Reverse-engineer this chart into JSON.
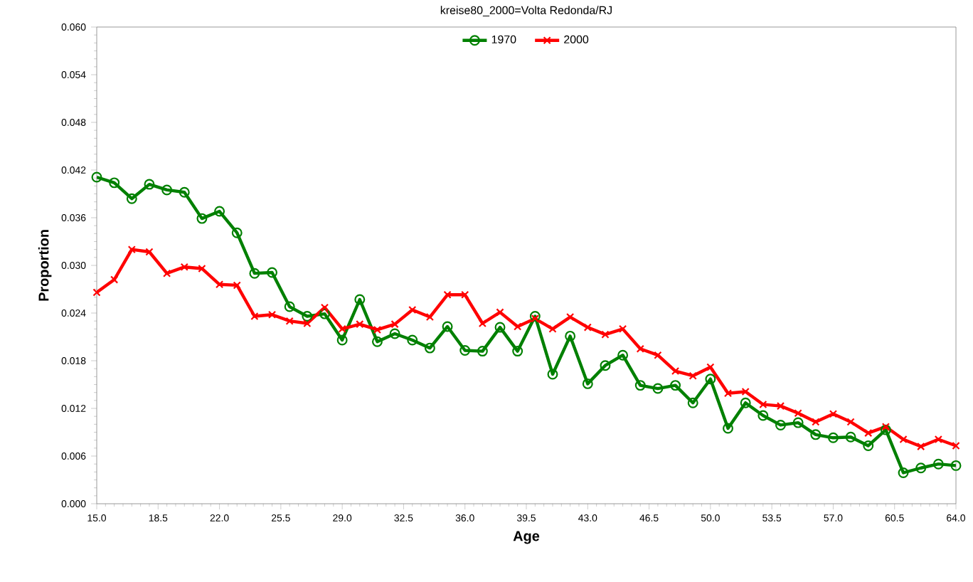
{
  "chart_data": {
    "type": "line",
    "title": "kreise80_2000=Volta Redonda/RJ",
    "xlabel": "Age",
    "ylabel": "Proportion",
    "x": [
      15,
      16,
      17,
      18,
      19,
      20,
      21,
      22,
      23,
      24,
      25,
      26,
      27,
      28,
      29,
      30,
      31,
      32,
      33,
      34,
      35,
      36,
      37,
      38,
      39,
      40,
      41,
      42,
      43,
      44,
      45,
      46,
      47,
      48,
      49,
      50,
      51,
      52,
      53,
      54,
      55,
      56,
      57,
      58,
      59,
      60,
      61,
      62,
      63,
      64
    ],
    "series": [
      {
        "name": "1970",
        "color": "#008000",
        "marker": "circle",
        "values": [
          0.0411,
          0.0404,
          0.0384,
          0.0402,
          0.0395,
          0.0392,
          0.0359,
          0.0368,
          0.0341,
          0.029,
          0.0291,
          0.0248,
          0.0236,
          0.0239,
          0.0206,
          0.0257,
          0.0204,
          0.0214,
          0.0206,
          0.0196,
          0.0223,
          0.0193,
          0.0192,
          0.0222,
          0.0192,
          0.0236,
          0.0163,
          0.0211,
          0.0151,
          0.0174,
          0.0187,
          0.0149,
          0.0145,
          0.0149,
          0.0127,
          0.0157,
          0.0095,
          0.0127,
          0.0111,
          0.0099,
          0.0102,
          0.0087,
          0.0083,
          0.0084,
          0.0073,
          0.0093,
          0.0039,
          0.0045,
          0.005,
          0.0048
        ]
      },
      {
        "name": "2000",
        "color": "#ff0000",
        "marker": "cross",
        "values": [
          0.0266,
          0.0282,
          0.032,
          0.0317,
          0.029,
          0.0298,
          0.0296,
          0.0276,
          0.0275,
          0.0236,
          0.0238,
          0.023,
          0.0227,
          0.0247,
          0.022,
          0.0226,
          0.0219,
          0.0226,
          0.0244,
          0.0235,
          0.0263,
          0.0263,
          0.0227,
          0.0241,
          0.0223,
          0.0233,
          0.022,
          0.0235,
          0.0222,
          0.0213,
          0.022,
          0.0195,
          0.0187,
          0.0167,
          0.0161,
          0.0172,
          0.0139,
          0.0141,
          0.0125,
          0.0123,
          0.0114,
          0.0103,
          0.0113,
          0.0103,
          0.0089,
          0.0097,
          0.0081,
          0.0072,
          0.0081,
          0.0073
        ]
      }
    ],
    "xlim": [
      15,
      64
    ],
    "ylim": [
      0,
      0.06
    ],
    "xticks": [
      {
        "value": 15,
        "label": "15.0"
      },
      {
        "value": 18.5,
        "label": "18.5"
      },
      {
        "value": 22,
        "label": "22.0"
      },
      {
        "value": 25.5,
        "label": "25.5"
      },
      {
        "value": 29,
        "label": "29.0"
      },
      {
        "value": 32.5,
        "label": "32.5"
      },
      {
        "value": 36,
        "label": "36.0"
      },
      {
        "value": 39.5,
        "label": "39.5"
      },
      {
        "value": 43,
        "label": "43.0"
      },
      {
        "value": 46.5,
        "label": "46.5"
      },
      {
        "value": 50,
        "label": "50.0"
      },
      {
        "value": 53.5,
        "label": "53.5"
      },
      {
        "value": 57,
        "label": "57.0"
      },
      {
        "value": 60.5,
        "label": "60.5"
      },
      {
        "value": 64,
        "label": "64.0"
      }
    ],
    "yticks": [
      {
        "value": 0,
        "label": "0.000"
      },
      {
        "value": 0.006,
        "label": "0.006"
      },
      {
        "value": 0.012,
        "label": "0.012"
      },
      {
        "value": 0.018,
        "label": "0.018"
      },
      {
        "value": 0.024,
        "label": "0.024"
      },
      {
        "value": 0.03,
        "label": "0.030"
      },
      {
        "value": 0.036,
        "label": "0.036"
      },
      {
        "value": 0.042,
        "label": "0.042"
      },
      {
        "value": 0.048,
        "label": "0.048"
      },
      {
        "value": 0.054,
        "label": "0.054"
      },
      {
        "value": 0.06,
        "label": "0.060"
      }
    ],
    "grid": false,
    "legend": "top",
    "line_style": "solid"
  }
}
